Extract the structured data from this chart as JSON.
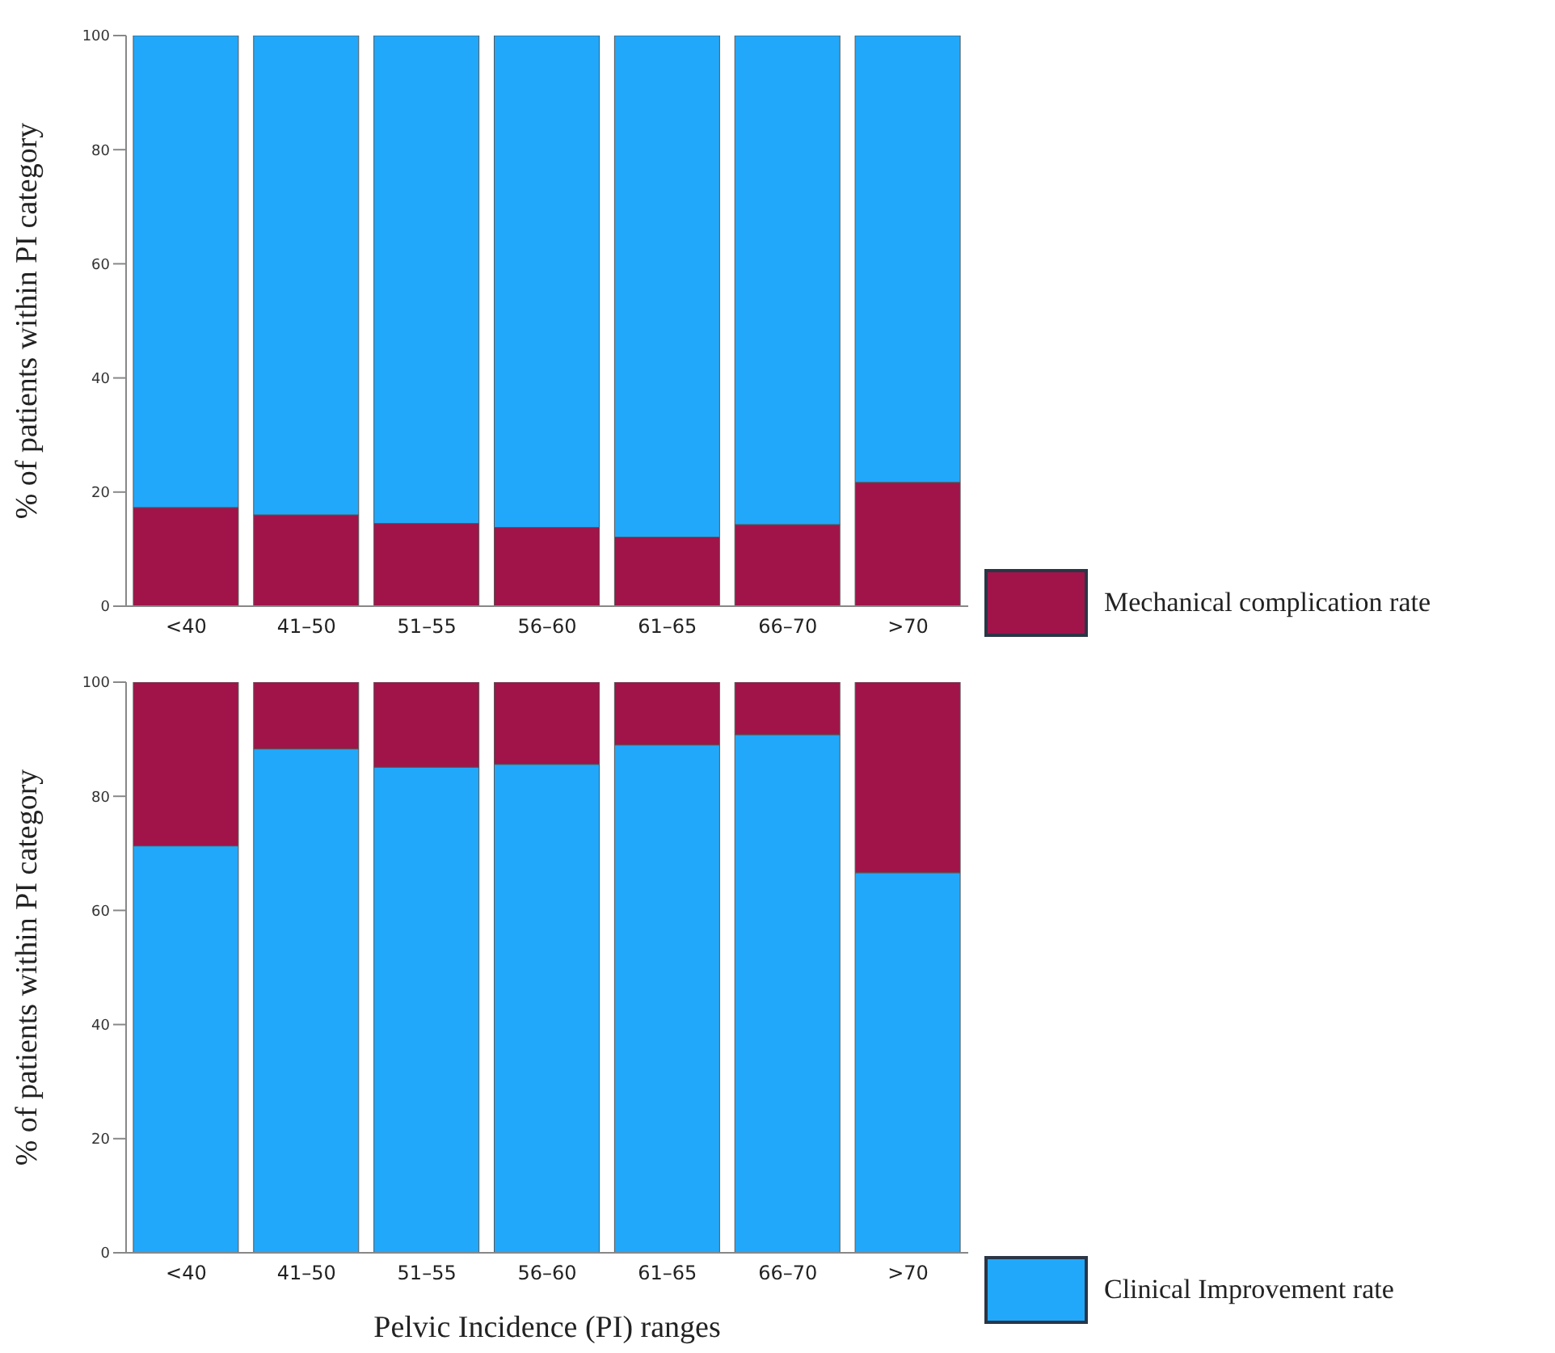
{
  "chart_data": [
    {
      "type": "bar",
      "stacked": true,
      "ylabel": "% of  patients within PI category",
      "categories": [
        "<40",
        "41–50",
        "51–55",
        "56–60",
        "61–65",
        "66–70",
        ">70"
      ],
      "ylim": [
        0,
        100
      ],
      "yticks": [
        0,
        20,
        40,
        60,
        80,
        100
      ],
      "legend": "right",
      "series": [
        {
          "name": "Mechanical complication rate",
          "color": "#a0144a",
          "values": [
            17.3,
            16.0,
            14.5,
            13.8,
            12.1,
            14.3,
            21.7
          ]
        },
        {
          "color": "#22a8fa",
          "values": [
            82.7,
            84.0,
            85.5,
            86.2,
            87.9,
            85.7,
            78.3
          ]
        }
      ]
    },
    {
      "type": "bar",
      "stacked": true,
      "ylabel": "% of  patients within PI category",
      "xlabel": "Pelvic Incidence (PI)  ranges",
      "categories": [
        "<40",
        "41–50",
        "51–55",
        "56–60",
        "61–65",
        "66–70",
        ">70"
      ],
      "ylim": [
        0,
        100
      ],
      "yticks": [
        0,
        20,
        40,
        60,
        80,
        100
      ],
      "legend": "right",
      "series": [
        {
          "name": "Clinical Improvement rate",
          "color": "#22a8fa",
          "values": [
            71.3,
            88.3,
            85.1,
            85.6,
            89.0,
            90.8,
            66.6
          ]
        },
        {
          "color": "#a0144a",
          "values": [
            28.7,
            11.7,
            14.9,
            14.4,
            11.0,
            9.2,
            33.4
          ]
        }
      ]
    }
  ]
}
